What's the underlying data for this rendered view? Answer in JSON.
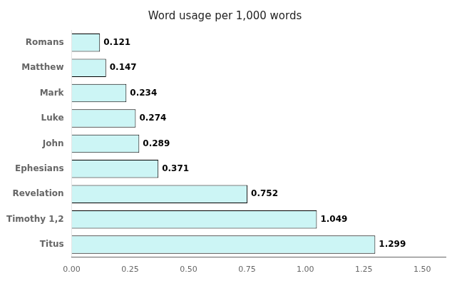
{
  "chart_data": {
    "type": "bar",
    "orientation": "horizontal",
    "title": "Word usage per 1,000 words",
    "categories": [
      "Romans",
      "Matthew",
      "Mark",
      "Luke",
      "John",
      "Ephesians",
      "Revelation",
      "Timothy 1,2",
      "Titus"
    ],
    "values": [
      0.121,
      0.147,
      0.234,
      0.274,
      0.289,
      0.371,
      0.752,
      1.049,
      1.299
    ],
    "color": "#ccf5f5",
    "xlim": [
      0,
      1.6
    ],
    "xticks": [
      {
        "value": 0,
        "label": "0.00"
      },
      {
        "value": 0.25,
        "label": "0.25"
      },
      {
        "value": 0.5,
        "label": "0.50"
      },
      {
        "value": 0.75,
        "label": "0.75"
      },
      {
        "value": 1.0,
        "label": "1.00"
      },
      {
        "value": 1.25,
        "label": "1.25"
      },
      {
        "value": 1.5,
        "label": "1.50"
      }
    ],
    "grid": false,
    "data_labels": true
  }
}
